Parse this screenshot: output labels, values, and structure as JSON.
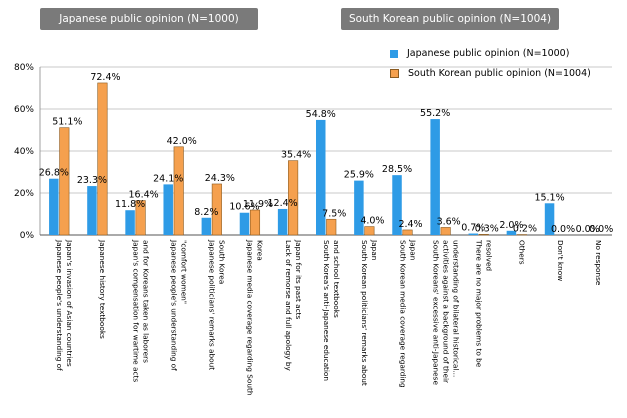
{
  "headers": {
    "left": "Japanese public opinion (N=1000)",
    "right": "South Korean public opinion (N=1004)"
  },
  "colors": {
    "japan": "#2e9be6",
    "korea": "#f5a04e",
    "korea_border": "#8a5a20",
    "grid": "#b8b8b8",
    "header_bg": "#7a7a7a"
  },
  "chart_data": {
    "type": "bar",
    "title": "",
    "xlabel": "",
    "ylabel": "",
    "ylim": [
      0,
      80
    ],
    "yticks": [
      "0%",
      "20%",
      "40%",
      "60%",
      "80%"
    ],
    "legend_position": "top-right",
    "categories": [
      "Japanese people's understanding of Japan's invasion of Asian countries",
      "Japanese history textbooks",
      "Japan's compensation for wartime acts and for Koreans taken as laborers",
      "Japanese people's understanding of \"comfort women\"",
      "Japanese politicians' remarks about South Korea",
      "Japanese media coverage regarding South Korea",
      "Lack of remorse and full apology by Japan for its past acts",
      "South Korea's anti-Japanese education and school textbooks",
      "South Korean politicians' remarks about Japan",
      "South Korean media coverage regarding Japan",
      "South Koreans' excessive anti-Japanese activities against a background of their understanding of bilateral historical...",
      "There are no major problems to be resolved",
      "Others",
      "Don't know",
      "No response"
    ],
    "series": [
      {
        "name": "Japanese public opinion (N=1000)",
        "values": [
          26.8,
          23.3,
          11.8,
          24.1,
          8.2,
          10.6,
          12.4,
          54.8,
          25.9,
          28.5,
          55.2,
          0.7,
          2.0,
          15.1,
          0.0
        ],
        "labels": [
          "26.8%",
          "23.3%",
          "11.8%",
          "24.1%",
          "8.2%",
          "10.6%",
          "12.4%",
          "54.8%",
          "25.9%",
          "28.5%",
          "55.2%",
          "0.7%",
          "2.0%",
          "15.1%",
          "0.0%"
        ]
      },
      {
        "name": "South Korean public opinion (N=1004)",
        "values": [
          51.1,
          72.4,
          16.4,
          42.0,
          24.3,
          11.9,
          35.4,
          7.5,
          4.0,
          2.4,
          3.6,
          0.3,
          0.2,
          0.0,
          0.0
        ],
        "labels": [
          "51.1%",
          "72.4%",
          "16.4%",
          "42.0%",
          "24.3%",
          "11.9%",
          "35.4%",
          "7.5%",
          "4.0%",
          "2.4%",
          "3.6%",
          "0.3%",
          "0.2%",
          "0.0%",
          "0.0%"
        ]
      }
    ]
  }
}
